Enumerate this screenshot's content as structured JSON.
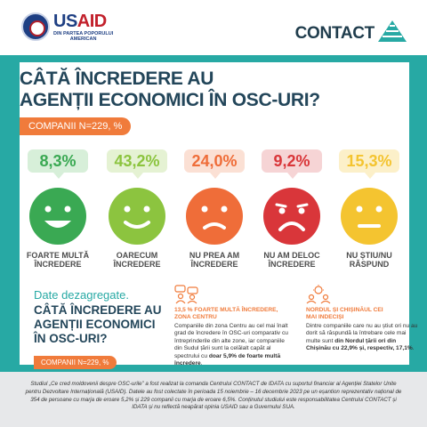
{
  "header": {
    "usaid_word_blue": "US",
    "usaid_word_red": "AID",
    "usaid_tagline_line1": "DIN PARTEA POPORULUI",
    "usaid_tagline_line2": "AMERICAN",
    "contact_word": "CONTACT"
  },
  "title": {
    "line1": "CÂTĂ ÎNCREDERE AU",
    "line2": "AGENȚII ECONOMICI ÎN OSC-URI?"
  },
  "sample_chip": "COMPANII N=229, %",
  "faces": [
    {
      "value": "8,3%",
      "label_line1": "FOARTE MULTĂ",
      "label_line2": "ÎNCREDERE",
      "icon": "very-happy-face-icon",
      "color": "#3aa953",
      "bubble_bg": "#d7efd9"
    },
    {
      "value": "43,2%",
      "label_line1": "OARECUM",
      "label_line2": "ÎNCREDERE",
      "icon": "happy-face-icon",
      "color": "#8cc43f",
      "bubble_bg": "#e5f2d3"
    },
    {
      "value": "24,0%",
      "label_line1": "NU PREA AM",
      "label_line2": "ÎNCREDERE",
      "icon": "sad-face-icon",
      "color": "#ef6d39",
      "bubble_bg": "#fbe0d4"
    },
    {
      "value": "9,2%",
      "label_line1": "NU AM DELOC",
      "label_line2": "ÎNCREDERE",
      "icon": "very-sad-face-icon",
      "color": "#d9363a",
      "bubble_bg": "#f6d4d5"
    },
    {
      "value": "15,3%",
      "label_line1": "NU ȘTIU/NU",
      "label_line2": "RĂSPUND",
      "icon": "neutral-face-icon",
      "color": "#f4c430",
      "bubble_bg": "#fcf0c9"
    }
  ],
  "disaggregated": {
    "subtitle": "Date dezagregate.",
    "title_line1": "CÂTĂ ÎNCREDERE AU",
    "title_line2": "AGENȚII ECONOMICI",
    "title_line3": "ÎN OSC-URI?",
    "chip": "COMPANII N=229, %",
    "left_column": {
      "icon": "people-discussion-icon",
      "heading_line1": "13,5 % FOARTE MULTĂ ÎNCREDERE,",
      "heading_line2": "ZONA CENTRU",
      "body_pre": "Companiile din zona Centru au cel mai înalt grad de încredere în OSC-uri comparativ cu întreprinderile din alte zone, iar companiile din Sudul țării sunt la celălalt capăt al spectrului cu ",
      "body_bold": "doar 5,9% de foarte multă încredere",
      "body_post": "."
    },
    "right_column": {
      "icon": "idea-people-icon",
      "heading_line1": "NORDUL ȘI CHIȘINĂUL CEI",
      "heading_line2": "MAI INDECIȘI",
      "body_pre": "Dintre companiile care nu au știut ori nu au dorit să răspundă la întrebare cele mai multe sunt ",
      "body_bold": "din Nordul țării ori din Chișinău cu 22,9% și, respectiv, 17,1%",
      "body_post": "."
    }
  },
  "footer": {
    "text": "Studiul „Ce cred moldovenii despre OSC-urile” a fost realizat la comanda Centrului CONTACT de IDATA cu suportul financiar al Agenției Statelor Unite pentru Dezvoltare Internațională (USAID). Datele au fost colectate în perioada 15 noiembrie – 16 decembrie 2023 pe un eșantion reprezentativ național de 354 de persoane cu marja de eroare 5,2% și 229 companii cu marja de eroare 6,5%. Conținutul studiului este responsabilitatea Centrului CONTACT și IDATA și nu reflectă neapărat opinia USAID sau a Guvernului SUA."
  },
  "colors": {
    "teal": "#27a9a4",
    "navy": "#23465a",
    "orange": "#f07b3b"
  }
}
